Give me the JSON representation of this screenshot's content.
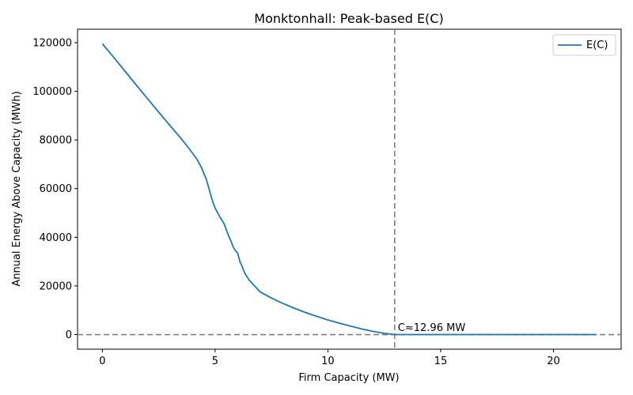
{
  "chart_data": {
    "type": "line",
    "title": "Monktonhall: Peak-based E(C)",
    "xlabel": "Firm Capacity (MW)",
    "ylabel": "Annual Energy Above Capacity (MWh)",
    "xlim": [
      -1.1,
      23.0
    ],
    "ylim": [
      -6000,
      125500
    ],
    "xticks": [
      0,
      5,
      10,
      15,
      20
    ],
    "xtick_labels": [
      "0",
      "5",
      "10",
      "15",
      "20"
    ],
    "yticks": [
      0,
      20000,
      40000,
      60000,
      80000,
      100000,
      120000
    ],
    "ytick_labels": [
      "0",
      "20000",
      "40000",
      "60000",
      "80000",
      "100000",
      "120000"
    ],
    "grid": false,
    "legend": {
      "position": "top-right",
      "entries": [
        {
          "label": "E(C)",
          "color": "#1f77b4"
        }
      ]
    },
    "series": [
      {
        "name": "E(C)",
        "color": "#1f77b4",
        "x": [
          0,
          0.5,
          1,
          1.5,
          2,
          2.5,
          3,
          3.5,
          3.8,
          4,
          4.2,
          4.4,
          4.6,
          4.7,
          4.8,
          4.9,
          5,
          5.2,
          5.4,
          5.5,
          5.6,
          5.7,
          5.8,
          5.9,
          6,
          6.1,
          6.2,
          6.3,
          6.5,
          6.8,
          7,
          7.5,
          8,
          8.5,
          9,
          9.5,
          10,
          10.5,
          11,
          11.5,
          12,
          12.5,
          12.96,
          14,
          16,
          18,
          20,
          21.9
        ],
        "y": [
          119500,
          114000,
          108300,
          102600,
          97000,
          91400,
          85900,
          80500,
          77000,
          74500,
          72000,
          68500,
          64000,
          61000,
          57500,
          54500,
          52000,
          48500,
          45500,
          43000,
          40500,
          38500,
          36000,
          34500,
          33500,
          30000,
          28000,
          25500,
          22500,
          19500,
          17500,
          15000,
          12800,
          10900,
          9100,
          7500,
          6000,
          4700,
          3500,
          2300,
          1300,
          500,
          0,
          0,
          0,
          0,
          0,
          0
        ]
      }
    ],
    "reference_lines": [
      {
        "orientation": "vertical",
        "value": 12.96,
        "color": "#808080",
        "style": "dashed"
      },
      {
        "orientation": "horizontal",
        "value": 0,
        "color": "#808080",
        "style": "dashed"
      }
    ],
    "annotations": [
      {
        "text": "C≈12.96 MW",
        "x": 13.1,
        "y": 1500
      }
    ]
  }
}
